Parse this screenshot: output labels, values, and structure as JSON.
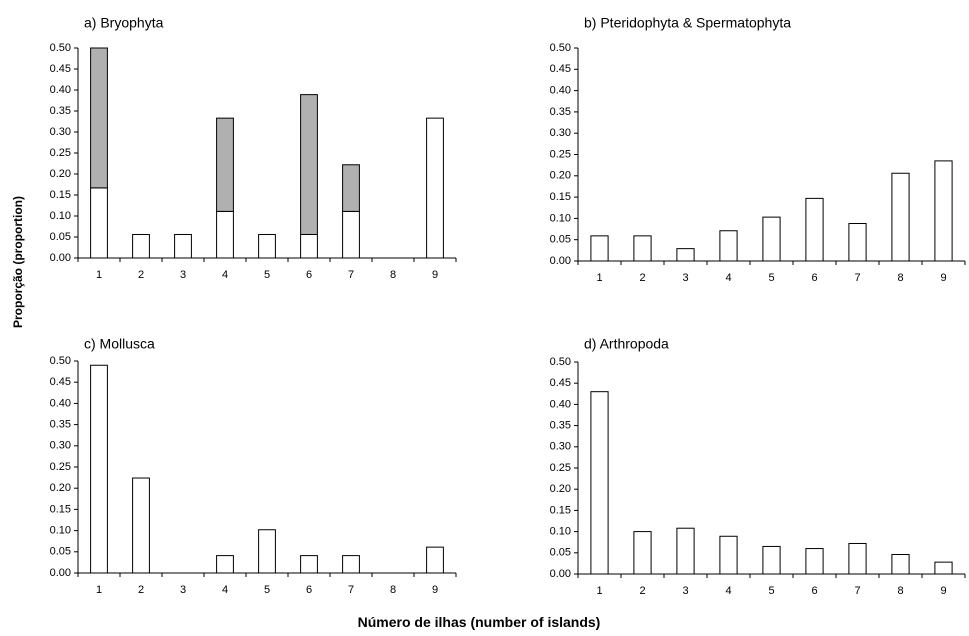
{
  "figure": {
    "ylabel": "Proporção (proportion)",
    "xlabel": "Número de ilhas (number of islands)"
  },
  "chart_data": [
    {
      "type": "bar",
      "stacked": true,
      "title": "a) Bryophyta",
      "categories": [
        "1",
        "2",
        "3",
        "4",
        "5",
        "6",
        "7",
        "8",
        "9"
      ],
      "ylim": [
        0,
        0.5
      ],
      "yticks": [
        "0.00",
        "0.05",
        "0.10",
        "0.15",
        "0.20",
        "0.25",
        "0.30",
        "0.35",
        "0.40",
        "0.45",
        "0.50"
      ],
      "series": [
        {
          "color": "#ffffff",
          "values": [
            0.167,
            0.056,
            0.056,
            0.111,
            0.056,
            0.056,
            0.111,
            0,
            0.333
          ]
        },
        {
          "color": "#b0b0b0",
          "values": [
            0.333,
            0,
            0,
            0.222,
            0,
            0.333,
            0.111,
            0,
            0
          ]
        }
      ]
    },
    {
      "type": "bar",
      "title": "b) Pteridophyta & Spermatophyta",
      "categories": [
        "1",
        "2",
        "3",
        "4",
        "5",
        "6",
        "7",
        "8",
        "9"
      ],
      "ylim": [
        0,
        0.5
      ],
      "yticks": [
        "0.00",
        "0.05",
        "0.10",
        "0.15",
        "0.20",
        "0.25",
        "0.30",
        "0.35",
        "0.40",
        "0.45",
        "0.50"
      ],
      "series": [
        {
          "color": "#ffffff",
          "values": [
            0.059,
            0.059,
            0.029,
            0.071,
            0.103,
            0.147,
            0.088,
            0.206,
            0.235
          ]
        }
      ]
    },
    {
      "type": "bar",
      "title": "c) Mollusca",
      "categories": [
        "1",
        "2",
        "3",
        "4",
        "5",
        "6",
        "7",
        "8",
        "9"
      ],
      "ylim": [
        0,
        0.5
      ],
      "yticks": [
        "0.00",
        "0.05",
        "0.10",
        "0.15",
        "0.20",
        "0.25",
        "0.30",
        "0.35",
        "0.40",
        "0.45",
        "0.50"
      ],
      "series": [
        {
          "color": "#ffffff",
          "values": [
            0.49,
            0.224,
            0,
            0.041,
            0.102,
            0.041,
            0.041,
            0,
            0.061
          ]
        }
      ]
    },
    {
      "type": "bar",
      "title": "d) Arthropoda",
      "categories": [
        "1",
        "2",
        "3",
        "4",
        "5",
        "6",
        "7",
        "8",
        "9"
      ],
      "ylim": [
        0,
        0.5
      ],
      "yticks": [
        "0.00",
        "0.05",
        "0.10",
        "0.15",
        "0.20",
        "0.25",
        "0.30",
        "0.35",
        "0.40",
        "0.45",
        "0.50"
      ],
      "series": [
        {
          "color": "#ffffff",
          "values": [
            0.43,
            0.1,
            0.108,
            0.089,
            0.065,
            0.06,
            0.072,
            0.046,
            0.028
          ]
        }
      ]
    }
  ]
}
